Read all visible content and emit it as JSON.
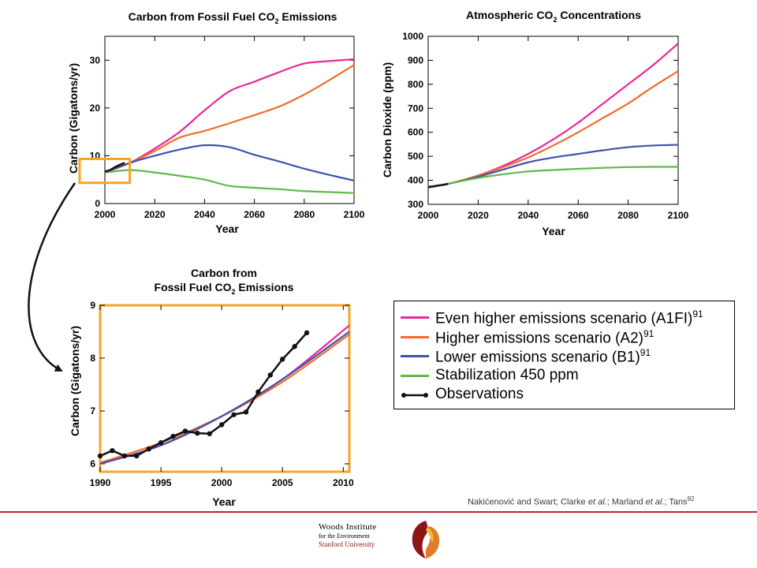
{
  "colors": {
    "a1fi": "#e8299a",
    "a2": "#f26b2a",
    "b1": "#4050b0",
    "stab": "#5cba47",
    "obs": "#111111",
    "highlight": "#f5a623",
    "footer_red": "#b8262a"
  },
  "legend": {
    "items": [
      {
        "label": "Even higher emissions scenario (A1FI)",
        "sup": "91",
        "color_key": "a1fi"
      },
      {
        "label": "Higher emissions scenario (A2)",
        "sup": "91",
        "color_key": "a2"
      },
      {
        "label": "Lower emissions scenario (B1)",
        "sup": "91",
        "color_key": "b1"
      },
      {
        "label": "Stabilization 450 ppm",
        "sup": "",
        "color_key": "stab"
      },
      {
        "label": "Observations",
        "sup": "",
        "color_key": "obs"
      }
    ]
  },
  "source": {
    "prefix": "Nakićenović and Swart; Clarke ",
    "et1": "et al.",
    "mid": "; Marland ",
    "et2": "et al.",
    "suffix": "; Tans",
    "sup": "92"
  },
  "logo": {
    "line1": "Woods Institute",
    "line2": "for the Environment",
    "line3": "Stanford University"
  },
  "chart_data": [
    {
      "id": "emissions",
      "type": "line",
      "title": "Carbon from Fossil Fuel CO₂ Emissions",
      "xlabel": "Year",
      "ylabel": "Carbon (Gigatons/yr)",
      "xlim": [
        2000,
        2100
      ],
      "ylim": [
        0,
        35
      ],
      "xticks": [
        2000,
        2020,
        2040,
        2060,
        2080,
        2100
      ],
      "yticks": [
        0,
        10,
        20,
        30
      ],
      "series": [
        {
          "name": "Even higher emissions scenario (A1FI)",
          "color_key": "a1fi",
          "x": [
            2000,
            2010,
            2020,
            2030,
            2040,
            2050,
            2060,
            2070,
            2080,
            2090,
            2100
          ],
          "y": [
            6.5,
            8.5,
            11.5,
            15,
            19.5,
            23.5,
            25.5,
            27.5,
            29.3,
            29.8,
            30.2
          ]
        },
        {
          "name": "Higher emissions scenario (A2)",
          "color_key": "a2",
          "x": [
            2000,
            2010,
            2020,
            2030,
            2040,
            2050,
            2060,
            2070,
            2080,
            2090,
            2100
          ],
          "y": [
            6.5,
            8.5,
            11,
            13.8,
            15.2,
            16.8,
            18.5,
            20.3,
            22.8,
            25.8,
            29
          ]
        },
        {
          "name": "Lower emissions scenario (B1)",
          "color_key": "b1",
          "x": [
            2000,
            2010,
            2020,
            2030,
            2040,
            2050,
            2060,
            2070,
            2080,
            2090,
            2100
          ],
          "y": [
            6.5,
            8.5,
            10,
            11.3,
            12.2,
            11.8,
            10.2,
            8.8,
            7.3,
            6,
            4.8
          ]
        },
        {
          "name": "Stabilization 450 ppm",
          "color_key": "stab",
          "x": [
            2000,
            2010,
            2020,
            2030,
            2040,
            2050,
            2060,
            2070,
            2080,
            2090,
            2100
          ],
          "y": [
            6.5,
            7,
            6.5,
            5.8,
            5,
            3.7,
            3.3,
            3,
            2.6,
            2.4,
            2.2
          ]
        },
        {
          "name": "Observations",
          "color_key": "obs",
          "x": [
            2000,
            2002,
            2004,
            2006,
            2008
          ],
          "y": [
            6.7,
            7,
            7.6,
            8.1,
            8.5
          ]
        }
      ],
      "highlight": {
        "x": [
          2000,
          2010
        ],
        "y": [
          4,
          9
        ]
      }
    },
    {
      "id": "concentrations",
      "type": "line",
      "title": "Atmospheric CO₂ Concentrations",
      "xlabel": "Year",
      "ylabel": "Carbon Dioxide (ppm)",
      "xlim": [
        2000,
        2100
      ],
      "ylim": [
        300,
        1000
      ],
      "xticks": [
        2000,
        2020,
        2040,
        2060,
        2080,
        2100
      ],
      "yticks": [
        300,
        400,
        500,
        600,
        700,
        800,
        900,
        1000
      ],
      "series": [
        {
          "name": "Even higher emissions scenario (A1FI)",
          "color_key": "a1fi",
          "x": [
            2000,
            2010,
            2020,
            2030,
            2040,
            2050,
            2060,
            2070,
            2080,
            2090,
            2100
          ],
          "y": [
            370,
            390,
            420,
            460,
            510,
            570,
            640,
            720,
            800,
            880,
            970
          ]
        },
        {
          "name": "Higher emissions scenario (A2)",
          "color_key": "a2",
          "x": [
            2000,
            2010,
            2020,
            2030,
            2040,
            2050,
            2060,
            2070,
            2080,
            2090,
            2100
          ],
          "y": [
            370,
            390,
            420,
            455,
            495,
            545,
            600,
            660,
            720,
            790,
            855
          ]
        },
        {
          "name": "Lower emissions scenario (B1)",
          "color_key": "b1",
          "x": [
            2000,
            2010,
            2020,
            2030,
            2040,
            2050,
            2060,
            2070,
            2080,
            2090,
            2100
          ],
          "y": [
            370,
            390,
            415,
            445,
            475,
            495,
            510,
            525,
            538,
            545,
            548
          ]
        },
        {
          "name": "Stabilization 450 ppm",
          "color_key": "stab",
          "x": [
            2000,
            2010,
            2020,
            2030,
            2040,
            2050,
            2060,
            2070,
            2080,
            2090,
            2100
          ],
          "y": [
            370,
            390,
            410,
            425,
            437,
            443,
            448,
            452,
            455,
            456,
            456
          ]
        },
        {
          "name": "Observations",
          "color_key": "obs",
          "x": [
            2000,
            2004,
            2008
          ],
          "y": [
            372,
            378,
            385
          ]
        }
      ]
    },
    {
      "id": "zoom",
      "type": "line",
      "title": "Carbon from\nFossil Fuel CO₂ Emissions",
      "xlabel": "Year",
      "ylabel": "Carbon (Gigatons/yr)",
      "xlim": [
        1990,
        2010.5
      ],
      "ylim": [
        5.85,
        9
      ],
      "xticks": [
        1990,
        1995,
        2000,
        2005,
        2010
      ],
      "yticks": [
        6,
        7,
        8,
        9
      ],
      "series": [
        {
          "name": "Even higher emissions scenario (A1FI)",
          "color_key": "a1fi",
          "x": [
            1990,
            1995,
            2000,
            2005,
            2010.5
          ],
          "y": [
            6.0,
            6.35,
            6.9,
            7.6,
            8.62
          ]
        },
        {
          "name": "Higher emissions scenario (A2)",
          "color_key": "a2",
          "x": [
            1990,
            1995,
            2000,
            2005,
            2010.5
          ],
          "y": [
            6.02,
            6.4,
            6.9,
            7.55,
            8.45
          ]
        },
        {
          "name": "Lower emissions scenario (B1)",
          "color_key": "b1",
          "x": [
            1990,
            1995,
            2000,
            2005,
            2010.5
          ],
          "y": [
            6.0,
            6.35,
            6.9,
            7.6,
            8.5
          ]
        },
        {
          "name": "Observations",
          "color_key": "obs",
          "markers": true,
          "x": [
            1990,
            1991,
            1992,
            1993,
            1994,
            1995,
            1996,
            1997,
            1998,
            1999,
            2000,
            2001,
            2002,
            2003,
            2004,
            2005,
            2006,
            2007
          ],
          "y": [
            6.15,
            6.25,
            6.15,
            6.15,
            6.28,
            6.4,
            6.52,
            6.62,
            6.58,
            6.57,
            6.74,
            6.93,
            6.98,
            7.36,
            7.68,
            7.98,
            8.22,
            8.48
          ]
        }
      ]
    }
  ]
}
